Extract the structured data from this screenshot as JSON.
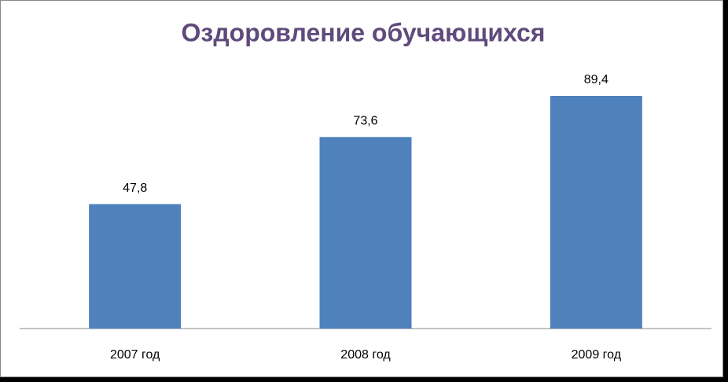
{
  "chart_data": {
    "type": "bar",
    "title": "Оздоровление обучающихся",
    "categories": [
      "2007 год",
      "2008 год",
      "2009 год"
    ],
    "values": [
      47.8,
      73.6,
      89.4
    ],
    "value_labels": [
      "47,8",
      "73,6",
      "89,4"
    ],
    "color": "#4f81bd"
  }
}
